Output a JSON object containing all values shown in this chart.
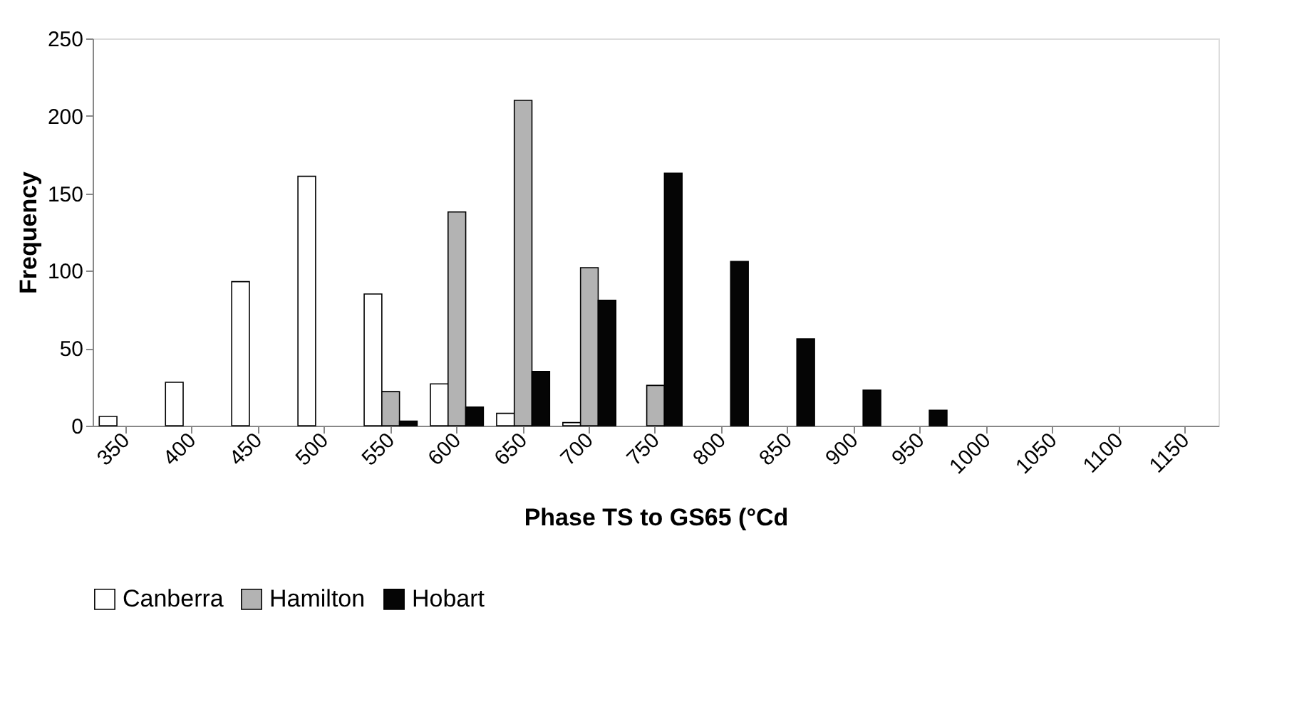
{
  "chart_data": {
    "type": "bar",
    "xlabel": "Phase TS to GS65 (°Cd",
    "ylabel": "Frequency",
    "categories": [
      "350",
      "400",
      "450",
      "500",
      "550",
      "600",
      "650",
      "700",
      "750",
      "800",
      "850",
      "900",
      "950",
      "1000",
      "1050",
      "1100",
      "1150"
    ],
    "series": [
      {
        "name": "Canberra",
        "color": "#ffffff",
        "values": [
          6,
          28,
          93,
          161,
          85,
          27,
          8,
          2,
          0,
          0,
          0,
          0,
          0,
          0,
          0,
          0,
          0
        ]
      },
      {
        "name": "Hamilton",
        "color": "#b3b3b3",
        "values": [
          0,
          0,
          0,
          0,
          22,
          138,
          210,
          102,
          26,
          0,
          0,
          0,
          0,
          0,
          0,
          0,
          0
        ]
      },
      {
        "name": "Hobart",
        "color": "#050505",
        "values": [
          0,
          0,
          0,
          0,
          3,
          12,
          35,
          81,
          163,
          106,
          56,
          23,
          10,
          0,
          0,
          0,
          0
        ]
      }
    ],
    "ylim": [
      0,
      250
    ],
    "yticks": [
      0,
      50,
      100,
      150,
      200,
      250
    ],
    "grid": false,
    "legend": "bottom"
  }
}
